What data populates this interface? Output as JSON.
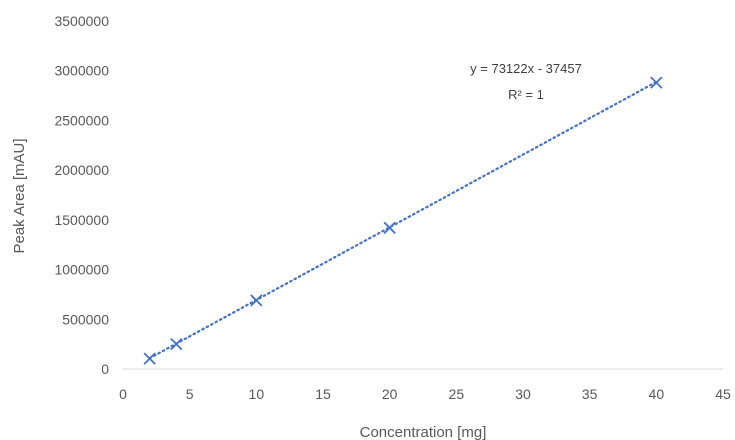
{
  "chart_data": {
    "type": "scatter",
    "title": "",
    "xlabel": "Concentration [mg]",
    "ylabel": "Peak Area [mAU]",
    "xlim": [
      0,
      45
    ],
    "ylim": [
      0,
      3500000
    ],
    "xticks": [
      0,
      5,
      10,
      15,
      20,
      25,
      30,
      35,
      40,
      45
    ],
    "yticks": [
      0,
      500000,
      1000000,
      1500000,
      2000000,
      2500000,
      3000000,
      3500000
    ],
    "grid": false,
    "legend": "none",
    "series": [
      {
        "marker": "x",
        "color": "#4472c4",
        "points": [
          {
            "x": 2,
            "y": 104000
          },
          {
            "x": 4,
            "y": 250000
          },
          {
            "x": 10,
            "y": 690000
          },
          {
            "x": 20,
            "y": 1420000
          },
          {
            "x": 40,
            "y": 2880000
          }
        ]
      }
    ],
    "trendline": {
      "type": "linear",
      "style": "dotted",
      "color": "#4472c4",
      "slope": 73122,
      "intercept": -37457,
      "x_start": 2,
      "x_end": 40
    },
    "annotations": {
      "equation": "y = 73122x - 37457",
      "r_squared": "R² = 1"
    },
    "colors": {
      "axis": "#d9d9d9",
      "text": "#595959",
      "series": "#4472c4"
    }
  }
}
